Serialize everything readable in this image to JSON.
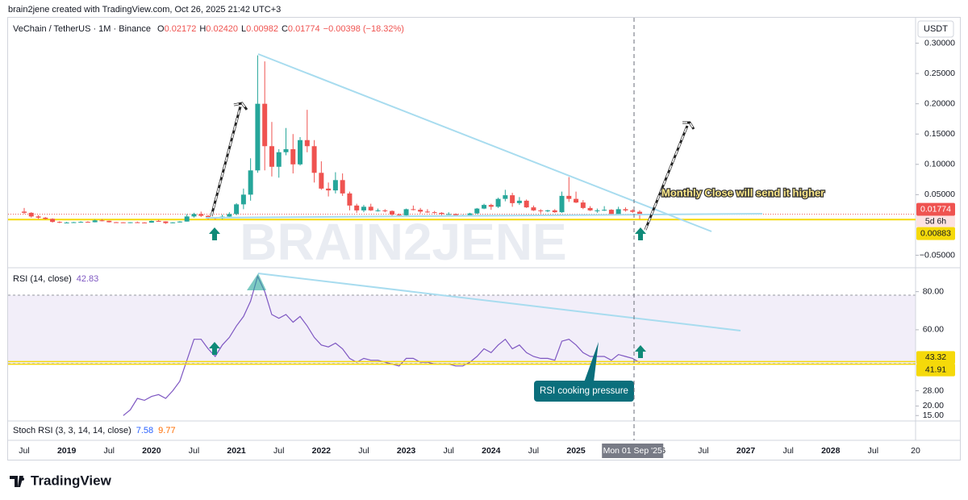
{
  "header": {
    "text": "brain2jene created with TradingView.com, Oct 26, 2025 21:42 UTC+3"
  },
  "footer": {
    "logo": "TradingView"
  },
  "chart_data": {
    "type": "candlestick",
    "symbol": "VeChain / TetherUS · 1M · Binance",
    "legend": {
      "o_label": "O",
      "o": "0.02172",
      "h_label": "H",
      "h": "0.02420",
      "l_label": "L",
      "l": "0.00982",
      "c_label": "C",
      "c": "0.01774",
      "change": "−0.00398 (−18.32%)"
    },
    "currency": "USDT",
    "watermark": "BRAIN2JENE",
    "colors": {
      "up": "#26a69a",
      "down": "#ef5350",
      "rsi": "#7e57c2",
      "trend": "#a8dcef",
      "level": "#f5d90a"
    },
    "ylim": [
      -0.068,
      0.334
    ],
    "yticks": [
      {
        "value": -0.05,
        "label": "−0.05000"
      },
      {
        "value": 0.05,
        "label": "0.05000"
      },
      {
        "value": 0.1,
        "label": "0.10000"
      },
      {
        "value": 0.15,
        "label": "0.15000"
      },
      {
        "value": 0.2,
        "label": "0.20000"
      },
      {
        "value": 0.25,
        "label": "0.25000"
      },
      {
        "value": 0.3,
        "label": "0.30000"
      }
    ],
    "xticks": [
      "Jul",
      "2019",
      "Jul",
      "2020",
      "Jul",
      "2021",
      "Jul",
      "2022",
      "Jul",
      "2023",
      "Jul",
      "2024",
      "Jul",
      "2025",
      null,
      "26",
      "Jul",
      "2027",
      "Jul",
      "2028",
      "Jul",
      "20"
    ],
    "crosshair_label": "Mon 01 Sep '25",
    "last_price": 0.01774,
    "countdown": "5d 6h",
    "support_level": 0.00883,
    "candles": [
      [
        0.022,
        0.028,
        0.018,
        0.02
      ],
      [
        0.02,
        0.021,
        0.012,
        0.014
      ],
      [
        0.014,
        0.016,
        0.01,
        0.012
      ],
      [
        0.012,
        0.013,
        0.009,
        0.01
      ],
      [
        0.01,
        0.011,
        0.004,
        0.005
      ],
      [
        0.005,
        0.006,
        0.003,
        0.004
      ],
      [
        0.004,
        0.005,
        0.003,
        0.004
      ],
      [
        0.004,
        0.005,
        0.0035,
        0.0045
      ],
      [
        0.0045,
        0.006,
        0.0042,
        0.005
      ],
      [
        0.005,
        0.006,
        0.004,
        0.0045
      ],
      [
        0.0045,
        0.009,
        0.0042,
        0.0075
      ],
      [
        0.0075,
        0.0095,
        0.006,
        0.0068
      ],
      [
        0.0068,
        0.007,
        0.004,
        0.0045
      ],
      [
        0.0045,
        0.005,
        0.004,
        0.0043
      ],
      [
        0.0043,
        0.0045,
        0.0035,
        0.0038
      ],
      [
        0.0038,
        0.0045,
        0.003,
        0.0044
      ],
      [
        0.0044,
        0.0055,
        0.0038,
        0.004
      ],
      [
        0.004,
        0.0045,
        0.0035,
        0.0038
      ],
      [
        0.0038,
        0.0072,
        0.0036,
        0.0066
      ],
      [
        0.0066,
        0.0085,
        0.0055,
        0.0058
      ],
      [
        0.0058,
        0.006,
        0.0018,
        0.003
      ],
      [
        0.003,
        0.0045,
        0.0028,
        0.0042
      ],
      [
        0.0042,
        0.0062,
        0.0038,
        0.0056
      ],
      [
        0.0056,
        0.018,
        0.0055,
        0.014
      ],
      [
        0.014,
        0.02,
        0.012,
        0.018
      ],
      [
        0.018,
        0.022,
        0.013,
        0.015
      ],
      [
        0.015,
        0.016,
        0.009,
        0.012
      ],
      [
        0.012,
        0.0125,
        0.009,
        0.0108
      ],
      [
        0.0108,
        0.017,
        0.0095,
        0.0138
      ],
      [
        0.0138,
        0.021,
        0.012,
        0.018
      ],
      [
        0.018,
        0.036,
        0.016,
        0.034
      ],
      [
        0.034,
        0.06,
        0.026,
        0.05
      ],
      [
        0.05,
        0.11,
        0.04,
        0.09
      ],
      [
        0.09,
        0.28,
        0.086,
        0.2
      ],
      [
        0.2,
        0.27,
        0.09,
        0.13
      ],
      [
        0.13,
        0.17,
        0.08,
        0.096
      ],
      [
        0.096,
        0.125,
        0.078,
        0.12
      ],
      [
        0.12,
        0.16,
        0.115,
        0.125
      ],
      [
        0.125,
        0.15,
        0.085,
        0.1
      ],
      [
        0.1,
        0.145,
        0.098,
        0.14
      ],
      [
        0.14,
        0.19,
        0.12,
        0.13
      ],
      [
        0.13,
        0.14,
        0.07,
        0.086
      ],
      [
        0.086,
        0.105,
        0.058,
        0.06
      ],
      [
        0.06,
        0.07,
        0.047,
        0.057
      ],
      [
        0.057,
        0.087,
        0.052,
        0.074
      ],
      [
        0.074,
        0.085,
        0.048,
        0.052
      ],
      [
        0.052,
        0.055,
        0.024,
        0.032
      ],
      [
        0.032,
        0.035,
        0.02,
        0.024
      ],
      [
        0.024,
        0.033,
        0.021,
        0.03
      ],
      [
        0.03,
        0.035,
        0.023,
        0.024
      ],
      [
        0.024,
        0.027,
        0.022,
        0.024
      ],
      [
        0.024,
        0.026,
        0.021,
        0.023
      ],
      [
        0.023,
        0.024,
        0.015,
        0.017
      ],
      [
        0.017,
        0.019,
        0.015,
        0.016
      ],
      [
        0.016,
        0.027,
        0.015,
        0.026
      ],
      [
        0.026,
        0.032,
        0.024,
        0.025
      ],
      [
        0.025,
        0.028,
        0.019,
        0.022
      ],
      [
        0.022,
        0.026,
        0.02,
        0.021
      ],
      [
        0.021,
        0.023,
        0.019,
        0.02
      ],
      [
        0.02,
        0.021,
        0.015,
        0.018
      ],
      [
        0.018,
        0.021,
        0.017,
        0.018
      ],
      [
        0.018,
        0.019,
        0.015,
        0.016
      ],
      [
        0.016,
        0.017,
        0.015,
        0.016
      ],
      [
        0.016,
        0.02,
        0.015,
        0.019
      ],
      [
        0.019,
        0.028,
        0.018,
        0.027
      ],
      [
        0.027,
        0.035,
        0.026,
        0.033
      ],
      [
        0.033,
        0.035,
        0.025,
        0.03
      ],
      [
        0.03,
        0.045,
        0.028,
        0.043
      ],
      [
        0.043,
        0.058,
        0.039,
        0.049
      ],
      [
        0.049,
        0.053,
        0.03,
        0.036
      ],
      [
        0.036,
        0.046,
        0.033,
        0.04
      ],
      [
        0.04,
        0.042,
        0.028,
        0.029
      ],
      [
        0.029,
        0.032,
        0.023,
        0.024
      ],
      [
        0.024,
        0.026,
        0.019,
        0.023
      ],
      [
        0.023,
        0.025,
        0.021,
        0.024
      ],
      [
        0.024,
        0.026,
        0.02,
        0.021
      ],
      [
        0.021,
        0.055,
        0.02,
        0.048
      ],
      [
        0.048,
        0.079,
        0.038,
        0.043
      ],
      [
        0.043,
        0.055,
        0.036,
        0.037
      ],
      [
        0.037,
        0.041,
        0.026,
        0.028
      ],
      [
        0.028,
        0.031,
        0.023,
        0.024
      ],
      [
        0.024,
        0.027,
        0.02,
        0.024
      ],
      [
        0.024,
        0.031,
        0.023,
        0.025
      ],
      [
        0.025,
        0.026,
        0.017,
        0.018
      ],
      [
        0.018,
        0.03,
        0.017,
        0.026
      ],
      [
        0.026,
        0.029,
        0.022,
        0.024
      ],
      [
        0.024,
        0.026,
        0.02,
        0.0217
      ],
      [
        0.02172,
        0.0242,
        0.00982,
        0.01774
      ]
    ],
    "annotation": "Monthly Close will send it higher",
    "rsi": {
      "label": "RSI (14, close)",
      "value": 42.83,
      "levels": [
        43.32,
        41.91
      ],
      "ylim": [
        13,
        90
      ],
      "yticks": [
        {
          "value": 15,
          "label": "15.00"
        },
        {
          "value": 20,
          "label": "20.00"
        },
        {
          "value": 28,
          "label": "28.00"
        },
        {
          "value": 60,
          "label": "60.00"
        },
        {
          "value": 80,
          "label": "80.00"
        }
      ],
      "values": [
        null,
        null,
        null,
        null,
        null,
        null,
        null,
        null,
        null,
        null,
        null,
        null,
        null,
        null,
        15,
        18,
        24,
        23,
        25,
        26,
        24,
        28,
        33,
        44,
        55,
        55,
        50,
        46,
        52,
        56,
        62,
        67,
        75,
        88,
        80,
        68,
        66,
        68,
        64,
        67,
        62,
        56,
        52,
        51,
        53,
        50,
        45,
        43,
        45,
        44,
        44,
        43,
        42,
        41,
        45,
        45,
        43,
        43,
        42,
        42,
        42,
        41,
        41,
        43,
        46,
        50,
        48,
        52,
        55,
        50,
        52,
        48,
        46,
        45,
        45,
        44,
        54,
        55,
        52,
        48,
        46,
        46,
        46,
        44,
        47,
        46,
        45,
        42.83
      ],
      "annotation": "RSI cooking pressure"
    },
    "stoch": {
      "label": "Stoch RSI (3, 3, 14, 14, close)",
      "k": 7.58,
      "d": 9.77
    }
  }
}
